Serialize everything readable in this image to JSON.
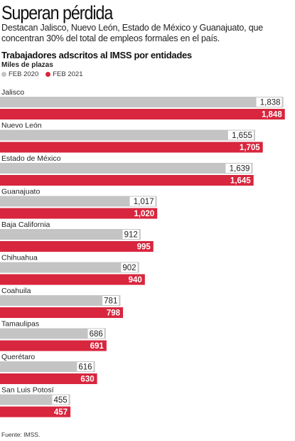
{
  "header": {
    "title": "Superan pérdida",
    "subtitle": "Destacan Jalisco, Nuevo León, Estado de México y Guanajuato, que concentran 30% del total de empleos formales en el país."
  },
  "source": "Fuente: IMSS.",
  "colors": {
    "feb2020": "#c4c4c4",
    "feb2021": "#d7263d",
    "label_bg": "#ffffff"
  },
  "chart_data": {
    "type": "bar",
    "orientation": "horizontal",
    "title": "Trabajadores adscritos al IMSS por entidades",
    "unit": "Miles de plazas",
    "legend_placement": "top-left",
    "grid": false,
    "xlim": [
      0,
      1900
    ],
    "categories": [
      "Jalisco",
      "Nuevo León",
      "Estado de México",
      "Guanajuato",
      "Baja California",
      "Chihuahua",
      "Coahuila",
      "Tamaulipas",
      "Querétaro",
      "San Luis Potosí"
    ],
    "series": [
      {
        "name": "FEB 2020",
        "values": [
          1838,
          1655,
          1639,
          1017,
          912,
          902,
          781,
          686,
          616,
          455
        ],
        "labels": [
          "1,838",
          "1,655",
          "1,639",
          "1,017",
          "912",
          "902",
          "781",
          "686",
          "616",
          "455"
        ]
      },
      {
        "name": "FEB 2021",
        "values": [
          1848,
          1705,
          1645,
          1020,
          995,
          940,
          798,
          691,
          630,
          457
        ],
        "labels": [
          "1,848",
          "1,705",
          "1,645",
          "1,020",
          "995",
          "940",
          "798",
          "691",
          "630",
          "457"
        ]
      }
    ]
  }
}
